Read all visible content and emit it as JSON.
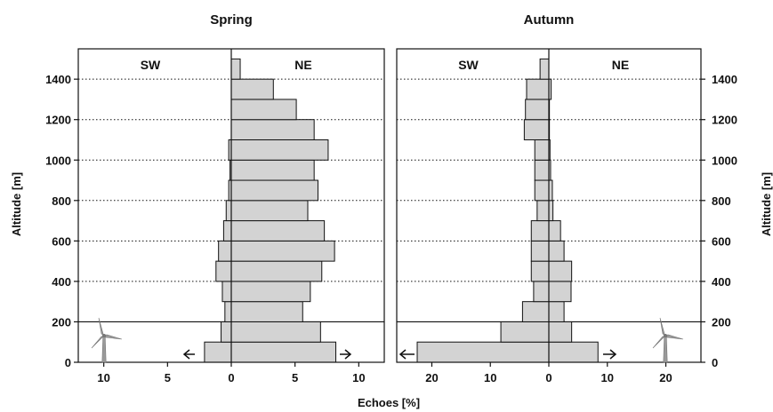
{
  "chart_data": [
    {
      "type": "bar",
      "orientation": "horizontal",
      "title": "Spring",
      "xlabel": "Echoes [%]",
      "ylabel": "Altitude [m]",
      "left_label": "SW",
      "right_label": "NE",
      "xlim": [
        -12,
        12
      ],
      "x_ticks": [
        -10,
        -5,
        0,
        5,
        10
      ],
      "x_tick_labels": [
        "10",
        "5",
        "0",
        "5",
        "10"
      ],
      "ylim": [
        0,
        1550
      ],
      "y_ticks": [
        0,
        200,
        400,
        600,
        800,
        1000,
        1200,
        1400
      ],
      "y_tick_labels": [
        "0",
        "200",
        "400",
        "600",
        "800",
        "1000",
        "1200",
        "1400"
      ],
      "grid": "dotted horizontal",
      "bin_edges": [
        0,
        100,
        200,
        300,
        400,
        500,
        600,
        700,
        800,
        900,
        1000,
        1100,
        1200,
        1300,
        1400,
        1500
      ],
      "series": [
        {
          "name": "SW",
          "values": [
            2.1,
            0.8,
            0.5,
            0.7,
            1.2,
            1.0,
            0.6,
            0.4,
            0.2,
            0.1,
            0.2,
            0.0,
            0.0,
            0.0,
            0.0
          ]
        },
        {
          "name": "NE",
          "values": [
            8.2,
            7.0,
            5.6,
            6.2,
            7.1,
            8.1,
            7.3,
            6.0,
            6.8,
            6.5,
            7.6,
            6.5,
            5.1,
            3.3,
            0.7
          ]
        }
      ]
    },
    {
      "type": "bar",
      "orientation": "horizontal",
      "title": "Autumn",
      "xlabel": "Echoes [%]",
      "ylabel": "Altitude [m]",
      "left_label": "SW",
      "right_label": "NE",
      "xlim": [
        -26,
        26
      ],
      "x_ticks": [
        -20,
        -10,
        0,
        10,
        20
      ],
      "x_tick_labels": [
        "20",
        "10",
        "0",
        "10",
        "20"
      ],
      "ylim": [
        0,
        1550
      ],
      "y_ticks": [
        0,
        200,
        400,
        600,
        800,
        1000,
        1200,
        1400
      ],
      "y_tick_labels": [
        "0",
        "200",
        "400",
        "600",
        "800",
        "1000",
        "1200",
        "1400"
      ],
      "grid": "dotted horizontal",
      "bin_edges": [
        0,
        100,
        200,
        300,
        400,
        500,
        600,
        700,
        800,
        900,
        1000,
        1100,
        1200,
        1300,
        1400,
        1500
      ],
      "series": [
        {
          "name": "SW",
          "values": [
            22.5,
            8.2,
            4.5,
            2.6,
            3.0,
            3.0,
            3.0,
            2.0,
            2.4,
            2.4,
            2.4,
            4.2,
            4.0,
            3.8,
            1.5
          ]
        },
        {
          "name": "NE",
          "values": [
            8.4,
            3.9,
            2.6,
            3.8,
            3.9,
            2.6,
            2.0,
            0.7,
            0.6,
            0.3,
            0.2,
            0.1,
            0.1,
            0.4,
            0.0
          ]
        }
      ]
    }
  ],
  "icons": {
    "spring": "wind-turbine-icon",
    "autumn": "wind-turbine-icon",
    "arrows": "direction-arrow-icon"
  },
  "colors": {
    "bar_fill": "#d3d3d3",
    "outline": "#111111"
  }
}
